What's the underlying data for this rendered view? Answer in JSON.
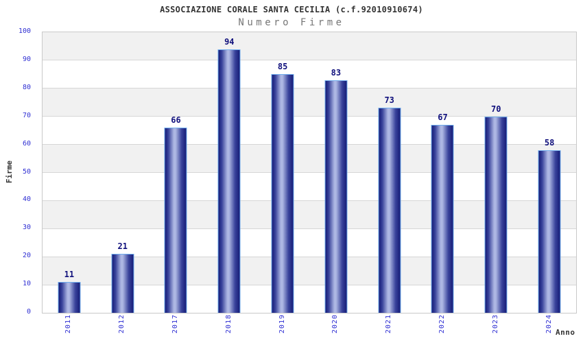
{
  "chart_data": {
    "type": "bar",
    "title": "ASSOCIAZIONE CORALE SANTA CECILIA (c.f.92010910674)",
    "subtitle": "Numero Firme",
    "categories": [
      "2011",
      "2012",
      "2017",
      "2018",
      "2019",
      "2020",
      "2021",
      "2022",
      "2023",
      "2024"
    ],
    "values": [
      11,
      21,
      66,
      94,
      85,
      83,
      73,
      67,
      70,
      58
    ],
    "xlabel": "Anno",
    "ylabel": "Firme",
    "ylim": [
      0,
      100
    ],
    "ytick_step": 10,
    "yticks": [
      0,
      10,
      20,
      30,
      40,
      50,
      60,
      70,
      80,
      90,
      100
    ],
    "grid": true,
    "legend": false,
    "band_pattern": "alternating 10-unit horizontal bands, gray on 10-20/30-40/50-60/70-80/90-100",
    "colors": {
      "background": "#ffffff",
      "title": "#333333",
      "subtitle": "#767676",
      "axis_title": "#333333",
      "tick_label": "#2e2ed2",
      "value_label": "#10107c",
      "bar_dark": "#161c77",
      "bar_mid": "#39439b",
      "bar_highlight": "#adb7e3",
      "bar_border": "#6fadee",
      "band": "#f1f1f1",
      "gridline": "#d6d6d6",
      "plot_border": "#c9c9c9"
    }
  }
}
